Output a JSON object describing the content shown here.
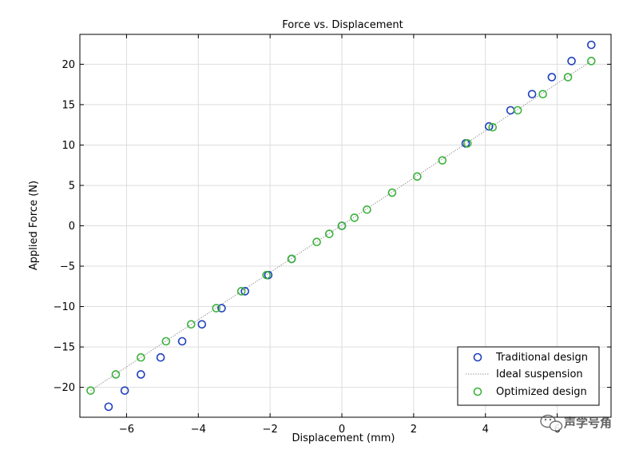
{
  "chart_data": {
    "type": "scatter",
    "title": "Force vs. Displacement",
    "xlabel": "Displacement (mm)",
    "ylabel": "Applied Force (N)",
    "xlim": [
      -7.3,
      7.5
    ],
    "ylim": [
      -23.7,
      23.7
    ],
    "xticks": [
      -6,
      -4,
      -2,
      0,
      2,
      4,
      6
    ],
    "yticks": [
      -20,
      -15,
      -10,
      -5,
      0,
      5,
      10,
      15,
      20
    ],
    "xtick_labels": [
      "−6",
      "−4",
      "−2",
      "0",
      "2",
      "4",
      "6"
    ],
    "ytick_labels": [
      "−20",
      "−15",
      "−10",
      "−5",
      "0",
      "5",
      "10",
      "15",
      "20"
    ],
    "grid": true,
    "legend_position": "bottom-right",
    "series": [
      {
        "name": "Traditional design",
        "kind": "markers",
        "color": "#1f3fbf",
        "x": [
          -6.5,
          -6.05,
          -5.6,
          -5.05,
          -4.45,
          -3.9,
          -3.35,
          -2.7,
          -2.05,
          -1.4,
          0,
          3.45,
          4.1,
          4.7,
          5.3,
          5.85,
          6.4,
          6.95
        ],
        "y": [
          -22.4,
          -20.4,
          -18.4,
          -16.3,
          -14.3,
          -12.2,
          -10.2,
          -8.1,
          -6.1,
          -4.1,
          0,
          10.2,
          12.3,
          14.3,
          16.3,
          18.4,
          20.4,
          22.4
        ]
      },
      {
        "name": "Ideal suspension",
        "kind": "dotted-line",
        "color": "#9a9a9a",
        "x": [
          -7.0,
          6.95
        ],
        "y": [
          -20.4,
          20.4
        ]
      },
      {
        "name": "Optimized design",
        "kind": "markers",
        "color": "#3bb33b",
        "x": [
          -7.0,
          -6.3,
          -5.6,
          -4.9,
          -4.2,
          -3.5,
          -2.8,
          -2.1,
          -1.4,
          -0.7,
          -0.35,
          0,
          0.35,
          0.7,
          1.4,
          2.1,
          2.8,
          3.5,
          4.2,
          4.9,
          5.6,
          6.3,
          6.95
        ],
        "y": [
          -20.4,
          -18.4,
          -16.3,
          -14.3,
          -12.2,
          -10.2,
          -8.1,
          -6.1,
          -4.1,
          -2.0,
          -1.0,
          0,
          1.0,
          2.0,
          4.1,
          6.1,
          8.1,
          10.2,
          12.2,
          14.3,
          16.3,
          18.4,
          20.4
        ]
      }
    ]
  },
  "watermark": {
    "text": "声学号角",
    "icon": "wechat-icon"
  }
}
